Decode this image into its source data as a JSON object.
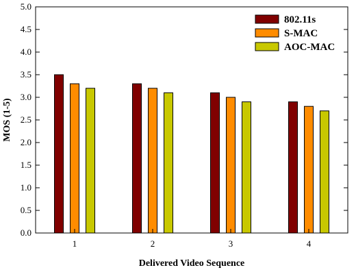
{
  "chart_data": {
    "type": "bar",
    "categories": [
      "1",
      "2",
      "3",
      "4"
    ],
    "series": [
      {
        "name": "802.11s",
        "color": "#800000",
        "values": [
          3.5,
          3.3,
          3.1,
          2.9
        ]
      },
      {
        "name": "S-MAC",
        "color": "#ff8c00",
        "values": [
          3.3,
          3.2,
          3.0,
          2.8
        ]
      },
      {
        "name": "AOC-MAC",
        "color": "#c8c800",
        "values": [
          3.2,
          3.1,
          2.9,
          2.7
        ]
      }
    ],
    "xlabel": "Delivered Video Sequence",
    "ylabel": "MOS (1-5)",
    "ylim": [
      0.0,
      5.0
    ],
    "yticks": [
      "0.0",
      "0.5",
      "1.0",
      "1.5",
      "2.0",
      "2.5",
      "3.0",
      "3.5",
      "4.0",
      "4.5",
      "5.0"
    ],
    "legend_position": "top-right",
    "grid": false
  }
}
